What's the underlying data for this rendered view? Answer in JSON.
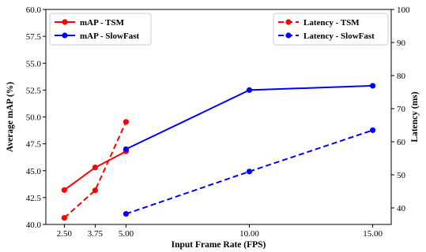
{
  "chart_data": {
    "type": "line",
    "xlabel": "Input Frame Rate (FPS)",
    "ylabel_left": "Average mAP (%)",
    "ylabel_right": "Latency (ms)",
    "xticks": [
      2.5,
      3.75,
      5.0,
      10.0,
      15.0
    ],
    "xtick_labels": [
      "2.50",
      "3.75",
      "5.00",
      "10.00",
      "15.00"
    ],
    "xlim": [
      1.75,
      15.75
    ],
    "ylim_left": [
      40.0,
      60.0
    ],
    "yticks_left": [
      40.0,
      42.5,
      45.0,
      47.5,
      50.0,
      52.5,
      55.0,
      57.5,
      60.0
    ],
    "ytick_labels_left": [
      "40.0",
      "42.5",
      "45.0",
      "47.5",
      "50.0",
      "52.5",
      "55.0",
      "57.5",
      "60.0"
    ],
    "ylim_right": [
      35,
      100
    ],
    "yticks_right": [
      40,
      50,
      60,
      70,
      80,
      90,
      100
    ],
    "ytick_labels_right": [
      "40",
      "50",
      "60",
      "70",
      "80",
      "90",
      "100"
    ],
    "grid": false,
    "series": [
      {
        "name": "mAP - TSM",
        "axis": "left",
        "color": "#ff0000",
        "style": "solid",
        "x": [
          2.5,
          3.75,
          5.0
        ],
        "y": [
          43.2,
          45.3,
          46.8
        ]
      },
      {
        "name": "mAP - SlowFast",
        "axis": "left",
        "color": "#0000ff",
        "style": "solid",
        "x": [
          5.0,
          10.0,
          15.0
        ],
        "y": [
          47.0,
          52.5,
          52.9
        ]
      },
      {
        "name": "Latency - TSM",
        "axis": "right",
        "color": "#ff0000",
        "style": "dashed",
        "x": [
          2.5,
          3.75,
          5.0
        ],
        "y": [
          37.0,
          45.3,
          66.0
        ]
      },
      {
        "name": "Latency - SlowFast",
        "axis": "right",
        "color": "#0000ff",
        "style": "dashed",
        "x": [
          5.0,
          10.0,
          15.0
        ],
        "y": [
          38.2,
          51.0,
          63.5
        ]
      }
    ],
    "legends": [
      {
        "placement": "top-left",
        "entries": [
          0,
          1
        ]
      },
      {
        "placement": "top-right",
        "entries": [
          2,
          3
        ]
      }
    ]
  }
}
